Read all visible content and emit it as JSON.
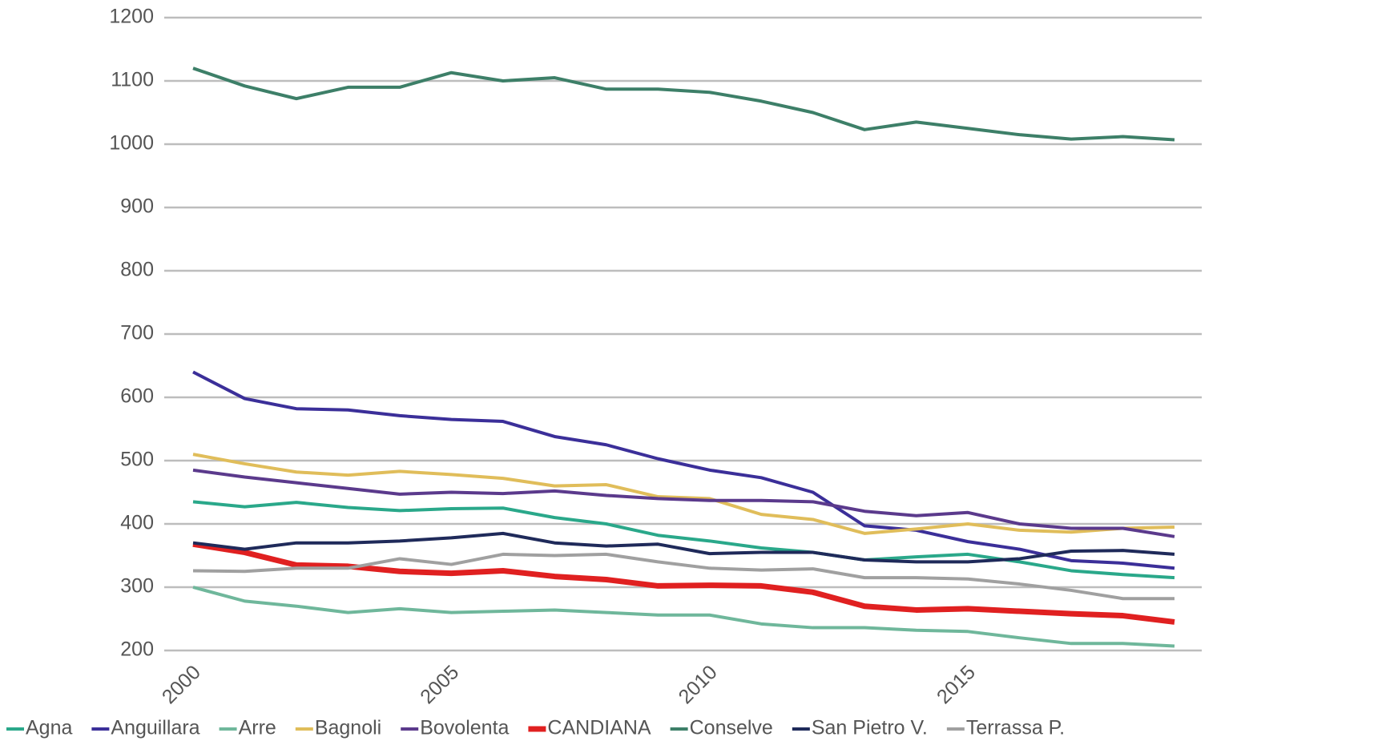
{
  "chart_data": {
    "type": "line",
    "x": [
      2000,
      2001,
      2002,
      2003,
      2004,
      2005,
      2006,
      2007,
      2008,
      2009,
      2010,
      2011,
      2012,
      2013,
      2014,
      2015,
      2016,
      2017,
      2018,
      2019
    ],
    "xlim": [
      2000,
      2019
    ],
    "xticks": [
      2000,
      2005,
      2010,
      2015
    ],
    "ylim": [
      200,
      1200
    ],
    "yticks": [
      200,
      300,
      400,
      500,
      600,
      700,
      800,
      900,
      1000,
      1100,
      1200
    ],
    "grid": true,
    "legend": "bottom",
    "series": [
      {
        "name": "Agna",
        "color": "#2aa88a",
        "values": [
          435,
          427,
          434,
          426,
          421,
          424,
          425,
          410,
          400,
          382,
          373,
          362,
          355,
          343,
          348,
          352,
          340,
          326,
          320,
          315
        ]
      },
      {
        "name": "Anguillara",
        "color": "#3b2f99",
        "values": [
          640,
          598,
          582,
          580,
          571,
          565,
          562,
          538,
          525,
          503,
          485,
          473,
          450,
          397,
          390,
          372,
          360,
          342,
          338,
          330
        ]
      },
      {
        "name": "Arre",
        "color": "#6fb79b",
        "values": [
          300,
          278,
          270,
          260,
          266,
          260,
          262,
          264,
          260,
          256,
          256,
          242,
          236,
          236,
          232,
          230,
          220,
          211,
          211,
          207
        ]
      },
      {
        "name": "Bagnoli",
        "color": "#e0bd5a",
        "values": [
          510,
          495,
          482,
          477,
          483,
          478,
          472,
          460,
          462,
          443,
          440,
          415,
          407,
          385,
          392,
          400,
          390,
          387,
          393,
          395
        ]
      },
      {
        "name": "Bovolenta",
        "color": "#5b3a8c",
        "values": [
          485,
          474,
          465,
          456,
          447,
          450,
          448,
          452,
          445,
          440,
          437,
          437,
          435,
          420,
          413,
          418,
          400,
          393,
          393,
          380
        ]
      },
      {
        "name": "CANDIANA",
        "color": "#e02020",
        "values": [
          368,
          355,
          335,
          333,
          325,
          322,
          326,
          317,
          312,
          302,
          303,
          302,
          292,
          270,
          264,
          266,
          262,
          258,
          255,
          245
        ]
      },
      {
        "name": "Conselve",
        "color": "#3d7f68",
        "values": [
          1120,
          1092,
          1072,
          1090,
          1090,
          1113,
          1100,
          1105,
          1087,
          1087,
          1082,
          1068,
          1050,
          1023,
          1035,
          1025,
          1015,
          1008,
          1012,
          1007
        ]
      },
      {
        "name": "San Pietro V.",
        "color": "#1f2a5a",
        "values": [
          370,
          360,
          370,
          370,
          373,
          378,
          385,
          370,
          365,
          368,
          353,
          355,
          355,
          343,
          340,
          340,
          345,
          357,
          358,
          352
        ]
      },
      {
        "name": "Terrassa P.",
        "color": "#a0a0a0",
        "values": [
          326,
          325,
          330,
          330,
          345,
          336,
          352,
          350,
          352,
          340,
          330,
          327,
          329,
          315,
          315,
          313,
          305,
          295,
          282,
          282
        ]
      }
    ]
  }
}
